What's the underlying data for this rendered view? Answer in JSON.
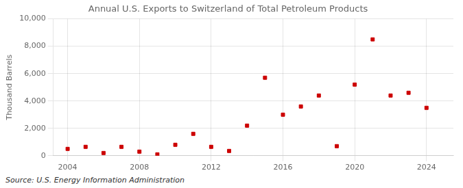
{
  "chart_data": {
    "type": "scatter",
    "title": "Annual U.S. Exports to Switzerland of Total Petroleum Products",
    "ylabel": "Thousand Barrels",
    "annotations": [
      "Source: U.S. Energy Information Administration"
    ],
    "x": [
      2004,
      2005,
      2006,
      2007,
      2008,
      2009,
      2010,
      2011,
      2012,
      2013,
      2014,
      2015,
      2016,
      2017,
      2018,
      2019,
      2020,
      2021,
      2022,
      2023,
      2024
    ],
    "values": [
      500,
      650,
      200,
      650,
      300,
      100,
      800,
      1600,
      650,
      350,
      2200,
      5700,
      3000,
      3600,
      4400,
      700,
      5200,
      8500,
      4400,
      4600,
      3500
    ],
    "color": "#cc0000",
    "marker": "square",
    "xlim": [
      2003.2,
      2025.5
    ],
    "xticks": [
      2004,
      2008,
      2012,
      2016,
      2020,
      2024
    ],
    "ylim": [
      0,
      10000
    ],
    "yticks": [
      0,
      {
        "value": 2000,
        "label": "2,000"
      },
      {
        "value": 4000,
        "label": "4,000"
      },
      {
        "value": 6000,
        "label": "6,000"
      },
      {
        "value": 8000,
        "label": "8,000"
      },
      {
        "value": 10000,
        "label": "10,000"
      }
    ],
    "grid": true
  }
}
